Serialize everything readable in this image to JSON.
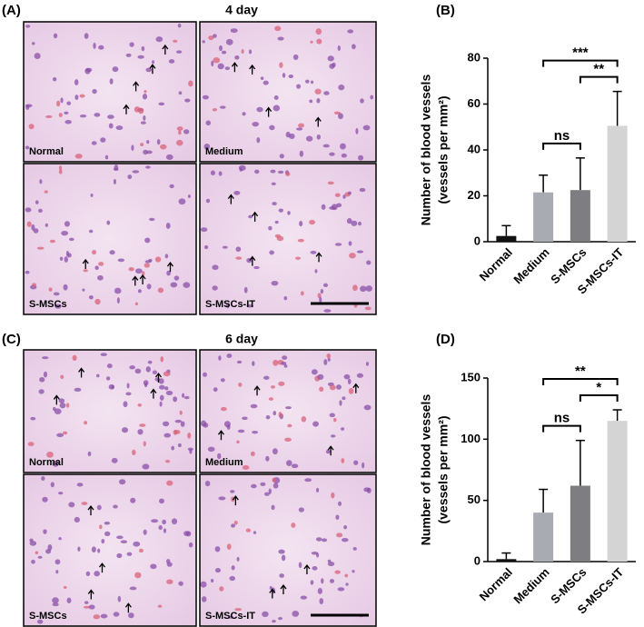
{
  "panels": [
    {
      "label": "(A)",
      "title": "4 day",
      "images": [
        "Normal",
        "Medium",
        "S-MSCs",
        "S-MSCs-IT"
      ]
    },
    {
      "label": "(C)",
      "title": "6 day",
      "images": [
        "Normal",
        "Medium",
        "S-MSCs",
        "S-MSCs-IT"
      ]
    }
  ],
  "chart_data": [
    {
      "type": "bar",
      "panel_label": "(B)",
      "y_label": [
        "Number of blood vessels",
        "(vessels per mm²)"
      ],
      "categories": [
        "Normal",
        "Medium",
        "S-MSCs",
        "S-MSCs-IT"
      ],
      "values": [
        2.5,
        21.5,
        22.5,
        50.5
      ],
      "errors": [
        4.5,
        7.5,
        14,
        15
      ],
      "colors": [
        "#111111",
        "#a9abb2",
        "#7e7e82",
        "#d4d4d4"
      ],
      "ylim": [
        0,
        80
      ],
      "yticks": [
        0,
        20,
        40,
        60,
        80
      ],
      "annotations": [
        {
          "from": "Medium",
          "to": "S-MSCs",
          "label": "ns"
        },
        {
          "from": "S-MSCs",
          "to": "S-MSCs-IT",
          "label": "**"
        },
        {
          "from": "Medium",
          "to": "S-MSCs-IT",
          "label": "***"
        }
      ]
    },
    {
      "type": "bar",
      "panel_label": "(D)",
      "y_label": [
        "Number of blood vessels",
        "(vessels per mm²)"
      ],
      "categories": [
        "Normal",
        "Medium",
        "S-MSCs",
        "S-MSCs-IT"
      ],
      "values": [
        2,
        40,
        62,
        115
      ],
      "errors": [
        5,
        19,
        37,
        9
      ],
      "colors": [
        "#111111",
        "#a9abb2",
        "#7e7e82",
        "#d4d4d4"
      ],
      "ylim": [
        0,
        150
      ],
      "yticks": [
        0,
        50,
        100,
        150
      ],
      "annotations": [
        {
          "from": "Medium",
          "to": "S-MSCs",
          "label": "ns"
        },
        {
          "from": "S-MSCs",
          "to": "S-MSCs-IT",
          "label": "*"
        },
        {
          "from": "Medium",
          "to": "S-MSCs-IT",
          "label": "**"
        }
      ]
    }
  ]
}
